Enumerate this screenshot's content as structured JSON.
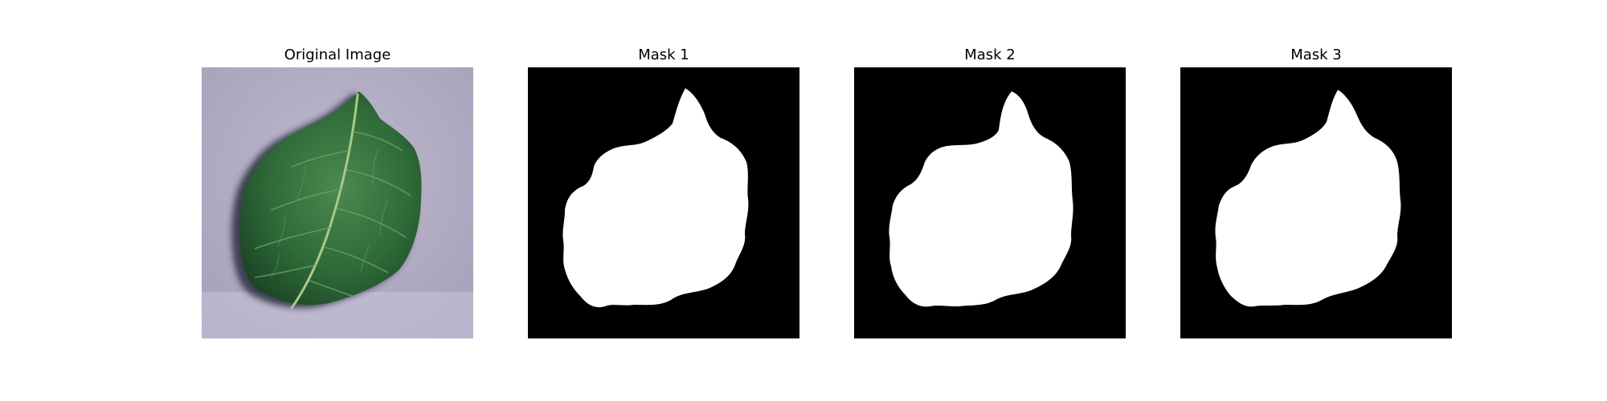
{
  "panels": [
    {
      "title": "Original Image"
    },
    {
      "title": "Mask 1"
    },
    {
      "title": "Mask 2"
    },
    {
      "title": "Mask 3"
    }
  ],
  "colors": {
    "background_paper": "#b3adc4",
    "leaf_dark": "#1e4a2a",
    "leaf_mid": "#3f7a45",
    "leaf_vein": "#a9c98a",
    "shadow": "#2b2e3f",
    "mask_foreground": "#ffffff",
    "mask_background": "#000000"
  }
}
